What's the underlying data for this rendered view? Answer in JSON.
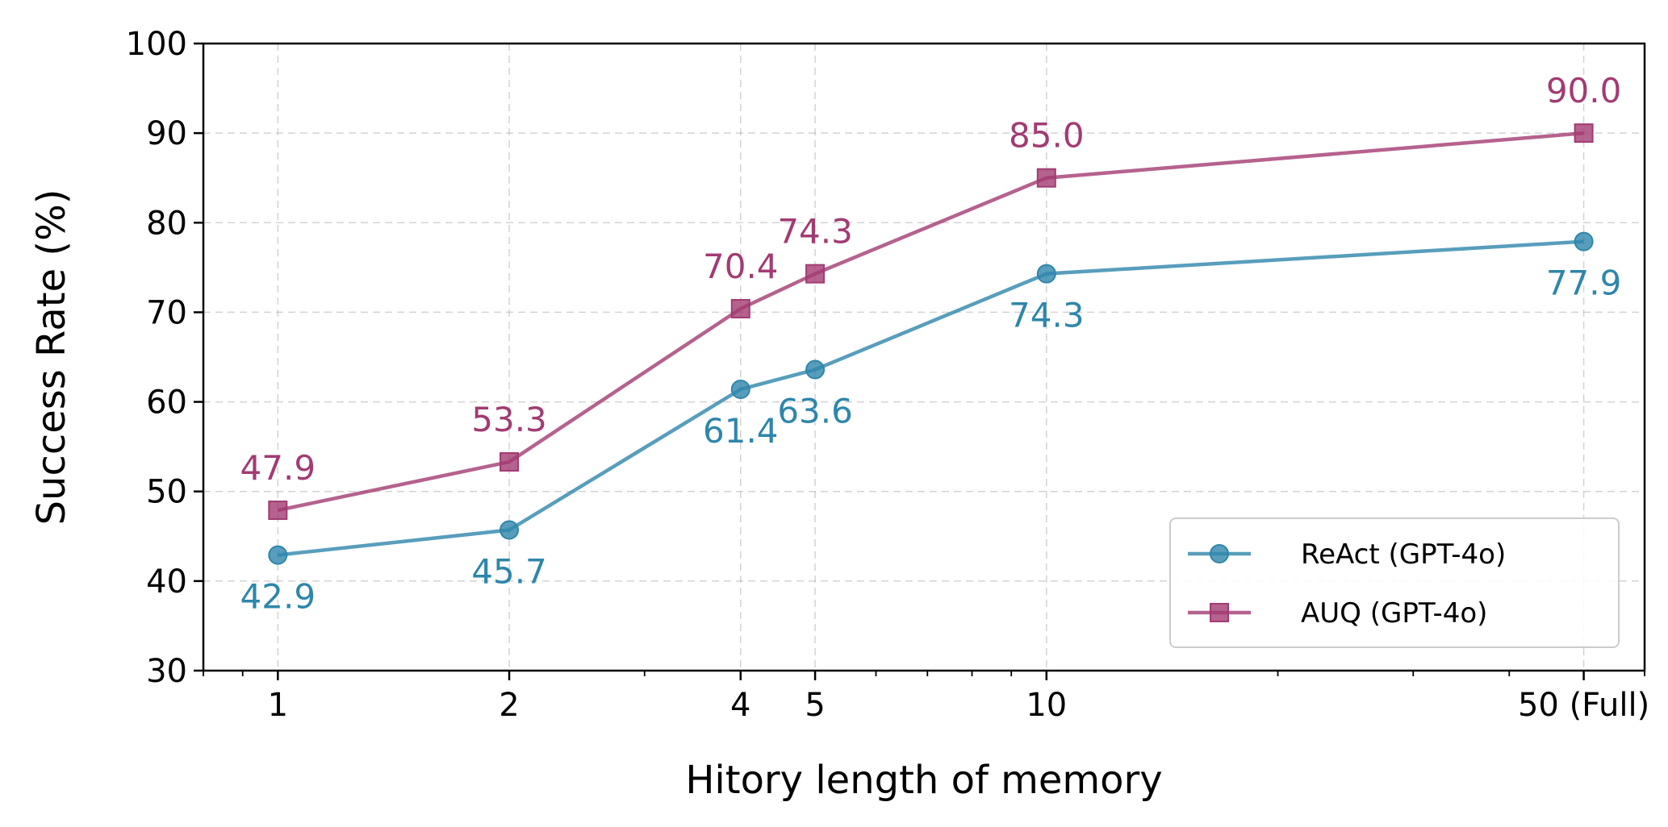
{
  "chart_data": {
    "type": "line",
    "xlabel": "Hitory length of memory",
    "ylabel": "Success Rate (%)",
    "x_scale": "log",
    "xlim": [
      0.8,
      60
    ],
    "ylim": [
      30,
      100
    ],
    "x": [
      1,
      2,
      4,
      5,
      10,
      50
    ],
    "x_tick_labels": [
      "1",
      "2",
      "4",
      "5",
      "10",
      "50 (Full)"
    ],
    "y_ticks": [
      30,
      40,
      50,
      60,
      70,
      80,
      90,
      100
    ],
    "y_tick_labels": [
      "30",
      "40",
      "50",
      "60",
      "70",
      "80",
      "90",
      "100"
    ],
    "grid": true,
    "legend_position": "lower-right",
    "series": [
      {
        "name": "ReAct (GPT-4o)",
        "values": [
          42.9,
          45.7,
          61.4,
          63.6,
          74.3,
          77.9
        ],
        "labels": [
          "42.9",
          "45.7",
          "61.4",
          "63.6",
          "74.3",
          "77.9"
        ],
        "color": "#2E86AB",
        "marker": "circle",
        "label_position": "below"
      },
      {
        "name": "AUQ (GPT-4o)",
        "values": [
          47.9,
          53.3,
          70.4,
          74.3,
          85.0,
          90.0
        ],
        "labels": [
          "47.9",
          "53.3",
          "70.4",
          "74.3",
          "85.0",
          "90.0"
        ],
        "color": "#A23B72",
        "marker": "square",
        "label_position": "above"
      }
    ]
  }
}
